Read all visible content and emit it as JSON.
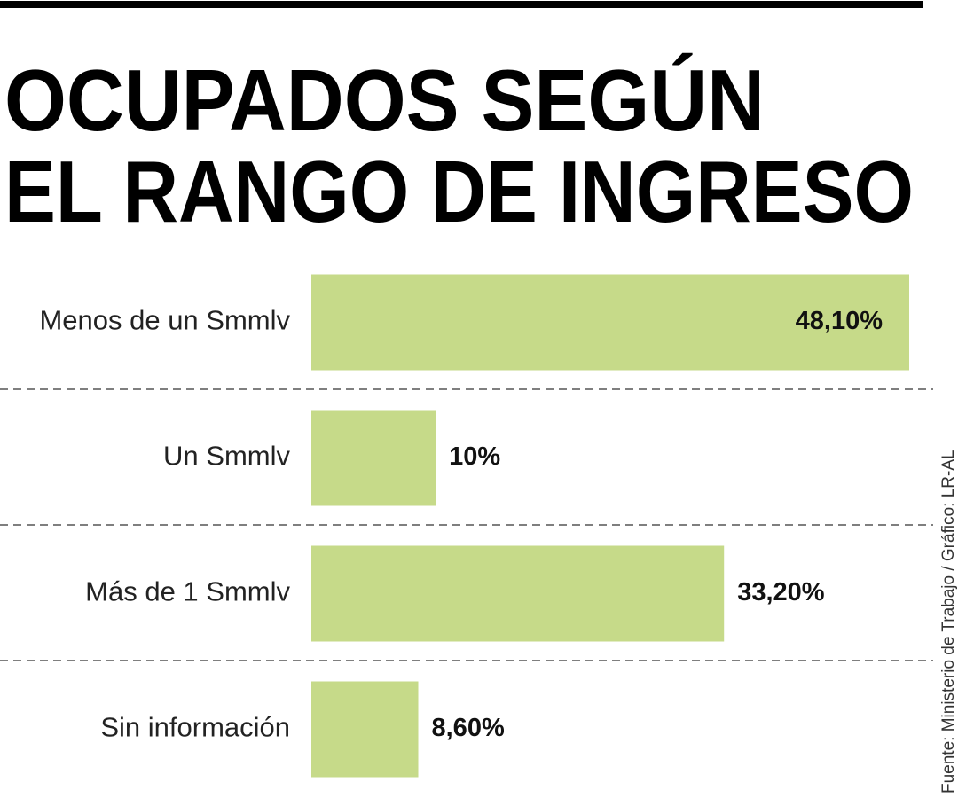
{
  "chart_data": {
    "type": "bar",
    "orientation": "horizontal",
    "title": [
      "OCUPADOS SEGÚN",
      "EL RANGO DE INGRESO"
    ],
    "categories": [
      "Menos de un Smmlv",
      "Un Smmlv",
      "Más de 1 Smmlv",
      "Sin información"
    ],
    "values": [
      48.1,
      10,
      33.2,
      8.6
    ],
    "value_labels": [
      "48,10%",
      "10%",
      "33,20%",
      "8,60%"
    ],
    "color": "#c6da89",
    "source": "Fuente: Ministerio de Trabajo / Gráfico: LR-AL"
  }
}
